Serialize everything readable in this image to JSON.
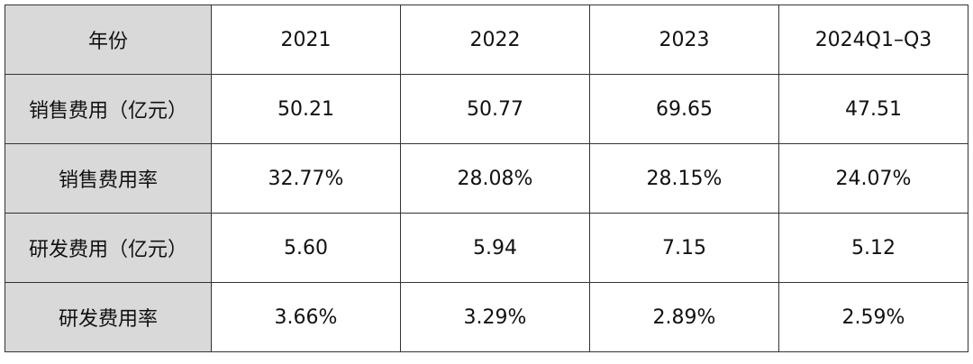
{
  "table": {
    "header": [
      "年份",
      "2021",
      "2022",
      "2023",
      "2024Q1–Q3"
    ],
    "rows": [
      [
        "销售费用（亿元）",
        "50.21",
        "50.77",
        "69.65",
        "47.51"
      ],
      [
        "销售费用率",
        "32.77%",
        "28.08%",
        "28.15%",
        "24.07%"
      ],
      [
        "研发费用（亿元）",
        "5.60",
        "5.94",
        "7.15",
        "5.12"
      ],
      [
        "研发费用率",
        "3.66%",
        "3.29%",
        "2.89%",
        "2.59%"
      ]
    ]
  }
}
